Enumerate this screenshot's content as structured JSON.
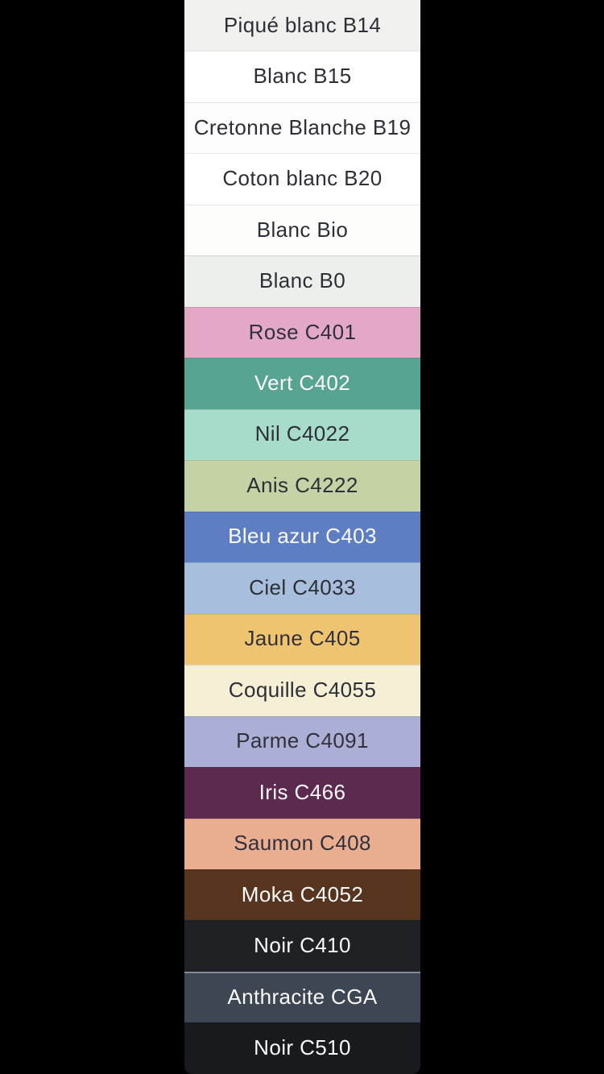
{
  "page": {
    "background_color": "#000000",
    "description": "Vertical fabric color swatch list"
  },
  "swatches": [
    {
      "label": "Piqué blanc B14",
      "bg": "#f0f0ee",
      "text_color": "#2d2f37",
      "texture": "stripes"
    },
    {
      "label": "Blanc B15",
      "bg": "#ffffff",
      "text_color": "#2d2f37",
      "texture": "none"
    },
    {
      "label": "Cretonne Blanche B19",
      "bg": "#fdfdfd",
      "text_color": "#2d2f37",
      "texture": "none"
    },
    {
      "label": "Coton blanc B20",
      "bg": "#ffffff",
      "text_color": "#2d2f37",
      "texture": "none"
    },
    {
      "label": "Blanc Bio",
      "bg": "#fdfdfc",
      "text_color": "#2d2f37",
      "texture": "none"
    },
    {
      "label": "Blanc B0",
      "bg": "#edefec",
      "text_color": "#2d2f37",
      "texture": "stripes"
    },
    {
      "label": "Rose C401",
      "bg": "#e3a8c5",
      "text_color": "#32303b",
      "texture": "none"
    },
    {
      "label": "Vert C402",
      "bg": "#58a492",
      "text_color": "#fafafa",
      "texture": "none"
    },
    {
      "label": "Nil C4022",
      "bg": "#a7dbca",
      "text_color": "#2d2f37",
      "texture": "none"
    },
    {
      "label": "Anis C4222",
      "bg": "#c5d2a5",
      "text_color": "#2d2f37",
      "texture": "none"
    },
    {
      "label": "Bleu azur C403",
      "bg": "#5e7ec4",
      "text_color": "#fafafa",
      "texture": "none"
    },
    {
      "label": "Ciel C4033",
      "bg": "#a7bfdd",
      "text_color": "#2d2f37",
      "texture": "none"
    },
    {
      "label": "Jaune C405",
      "bg": "#efc470",
      "text_color": "#32303b",
      "texture": "weave"
    },
    {
      "label": "Coquille C4055",
      "bg": "#f5efd6",
      "text_color": "#2d2f37",
      "texture": "none"
    },
    {
      "label": "Parme C4091",
      "bg": "#abafd6",
      "text_color": "#32303b",
      "texture": "none"
    },
    {
      "label": "Iris C466",
      "bg": "#5c294f",
      "text_color": "#fafafa",
      "texture": "none"
    },
    {
      "label": "Saumon C408",
      "bg": "#e9ae90",
      "text_color": "#32303b",
      "texture": "none"
    },
    {
      "label": "Moka C4052",
      "bg": "#57341e",
      "text_color": "#fafafa",
      "texture": "none"
    },
    {
      "label": "Noir C410",
      "bg": "#1f2125",
      "text_color": "#fafafa",
      "texture": "none"
    },
    {
      "label": "Anthracite CGA",
      "bg": "#3e4653",
      "text_color": "#fafafa",
      "texture": "highlight"
    },
    {
      "label": "Noir C510",
      "bg": "#191a1d",
      "text_color": "#fafafa",
      "texture": "none"
    }
  ]
}
